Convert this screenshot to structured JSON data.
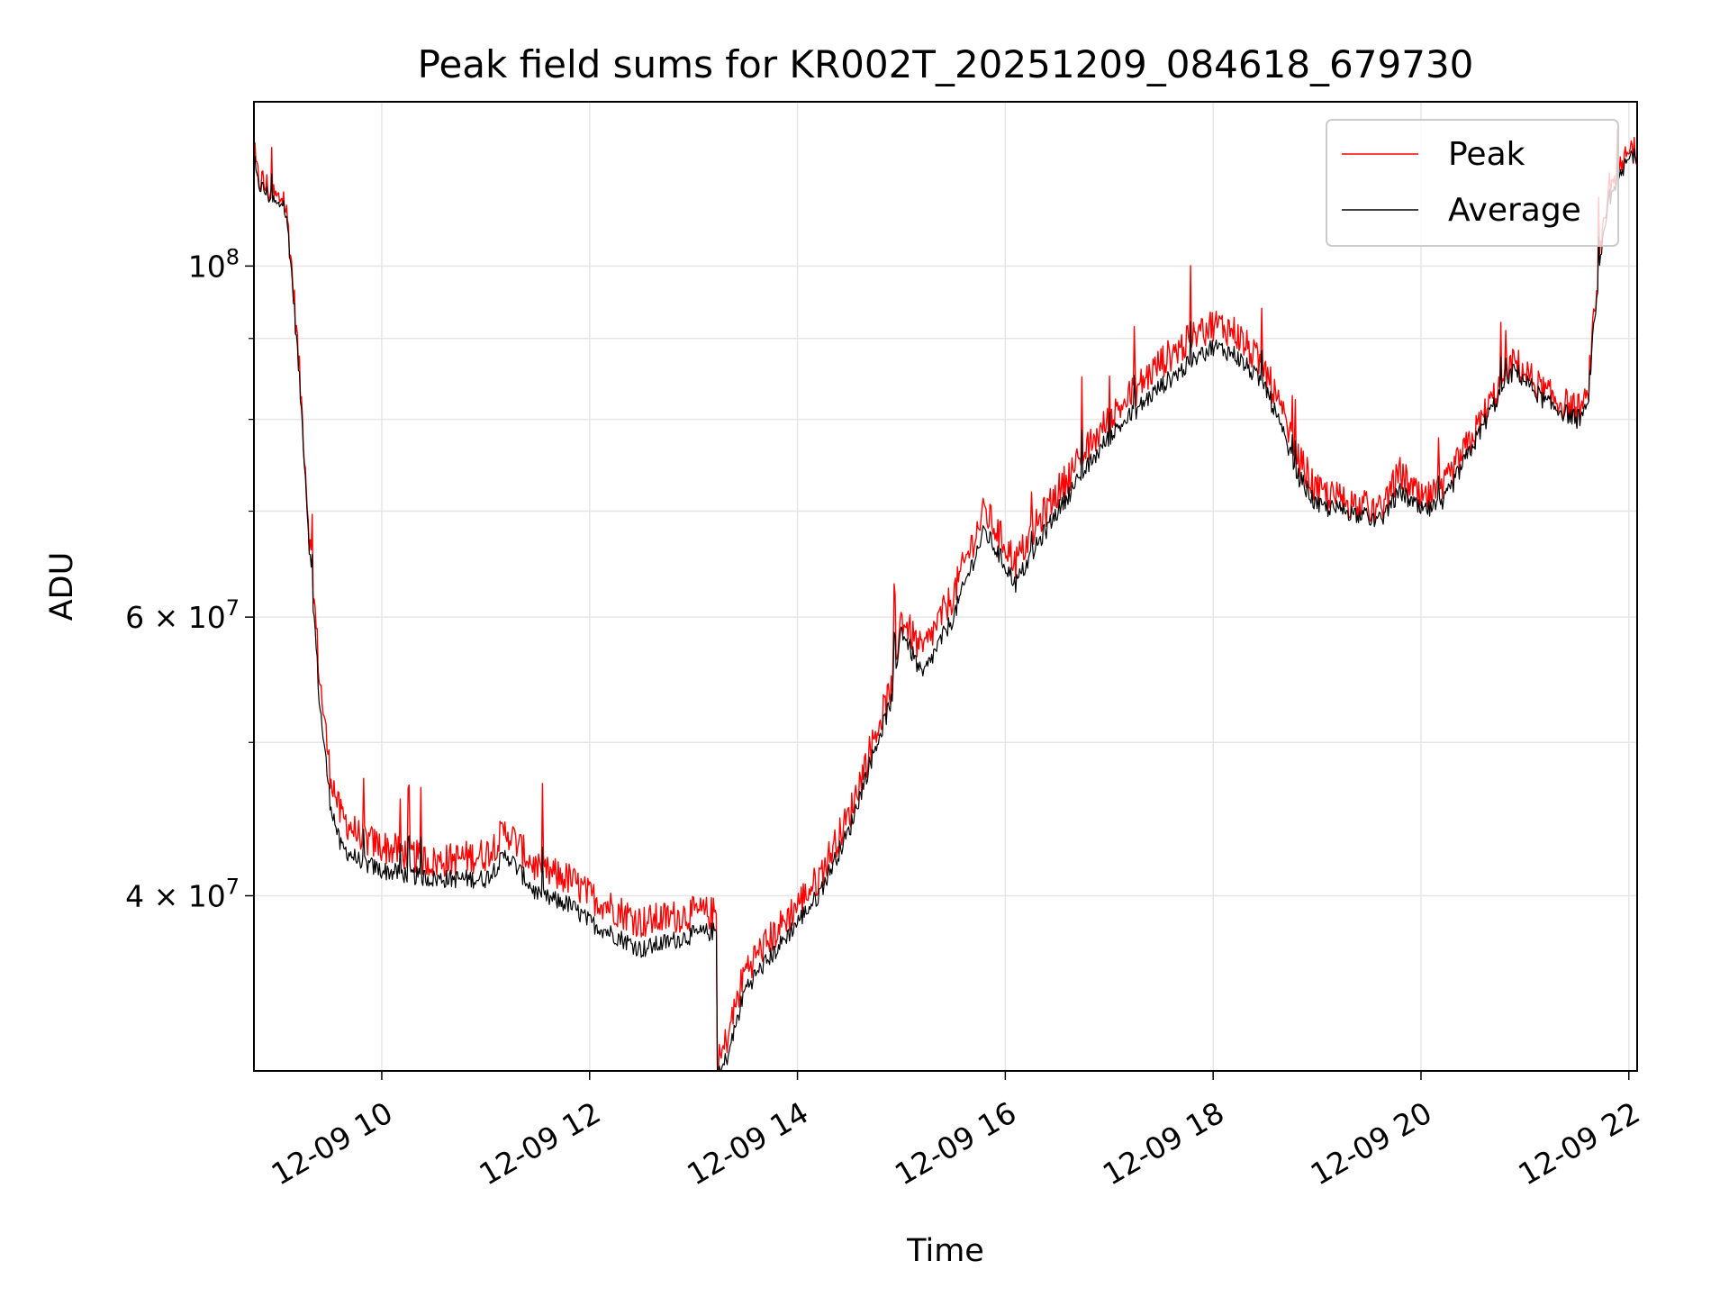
{
  "chart_data": {
    "type": "line",
    "title": "Peak field sums for KR002T_20251209_084618_679730",
    "xlabel": "Time",
    "ylabel": "ADU",
    "yscale": "log",
    "xlim_hours": [
      8.77,
      22.08
    ],
    "ylim": [
      31000000,
      127000000
    ],
    "grid": true,
    "legend_position": "top-right",
    "x_ticks": [
      {
        "value": 10,
        "label": "12-09 10"
      },
      {
        "value": 12,
        "label": "12-09 12"
      },
      {
        "value": 14,
        "label": "12-09 14"
      },
      {
        "value": 16,
        "label": "12-09 16"
      },
      {
        "value": 18,
        "label": "12-09 18"
      },
      {
        "value": 20,
        "label": "12-09 20"
      },
      {
        "value": 22,
        "label": "12-09 22"
      }
    ],
    "y_major_ticks": [
      {
        "value": 100000000,
        "label_base": "10",
        "label_exp": "8",
        "label_coef": ""
      },
      {
        "value": 60000000,
        "label_base": "10",
        "label_exp": "7",
        "label_coef": "6 × "
      },
      {
        "value": 40000000,
        "label_base": "10",
        "label_exp": "7",
        "label_coef": "4 × "
      }
    ],
    "y_minor_ticks": [
      50000000,
      70000000,
      80000000,
      90000000
    ],
    "series": [
      {
        "name": "Peak",
        "color": "#ff0000",
        "x": [
          8.77,
          8.8,
          8.9,
          9.0,
          9.05,
          9.1,
          9.2,
          9.3,
          9.4,
          9.5,
          9.6,
          9.8,
          10.0,
          10.5,
          11.0,
          11.2,
          11.5,
          11.8,
          12.0,
          12.5,
          13.0,
          13.22,
          13.23,
          13.35,
          13.5,
          13.8,
          14.2,
          14.5,
          14.9,
          15.0,
          15.2,
          15.5,
          15.8,
          16.1,
          16.5,
          17.0,
          17.5,
          18.0,
          18.2,
          18.5,
          18.8,
          19.0,
          19.3,
          19.6,
          19.8,
          20.0,
          20.2,
          20.5,
          20.8,
          20.9,
          21.2,
          21.5,
          21.6,
          21.7,
          21.8,
          21.9,
          22.0,
          22.08
        ],
        "y": [
          118000000,
          114000000,
          112000000,
          110000000,
          111000000,
          106000000,
          87000000,
          68000000,
          55000000,
          48000000,
          45000000,
          43500000,
          43000000,
          42000000,
          42500000,
          44000000,
          41500000,
          41000000,
          40000000,
          38500000,
          39000000,
          39000000,
          31000000,
          33000000,
          36000000,
          38000000,
          41000000,
          45000000,
          54000000,
          60000000,
          57000000,
          62000000,
          70000000,
          65000000,
          72000000,
          80000000,
          87000000,
          92000000,
          91000000,
          86000000,
          76000000,
          72000000,
          71000000,
          70000000,
          74000000,
          71000000,
          72000000,
          78000000,
          85000000,
          87000000,
          83000000,
          81000000,
          82000000,
          98000000,
          110000000,
          114000000,
          118000000,
          119000000
        ]
      },
      {
        "name": "Average",
        "color": "#000000",
        "x": [
          8.77,
          8.8,
          8.9,
          9.0,
          9.05,
          9.1,
          9.2,
          9.3,
          9.4,
          9.5,
          9.6,
          9.8,
          10.0,
          10.5,
          11.0,
          11.2,
          11.5,
          11.8,
          12.0,
          12.5,
          13.0,
          13.22,
          13.23,
          13.35,
          13.5,
          13.8,
          14.2,
          14.5,
          14.9,
          15.0,
          15.2,
          15.5,
          15.8,
          16.1,
          16.5,
          17.0,
          17.5,
          18.0,
          18.2,
          18.5,
          18.8,
          19.0,
          19.3,
          19.6,
          19.8,
          20.0,
          20.2,
          20.5,
          20.8,
          20.9,
          21.2,
          21.5,
          21.6,
          21.7,
          21.8,
          21.9,
          22.0,
          22.08
        ],
        "y": [
          117000000,
          113000000,
          111000000,
          109000000,
          110000000,
          105000000,
          86000000,
          67000000,
          53000000,
          46000000,
          43000000,
          42000000,
          41500000,
          41000000,
          41000000,
          42500000,
          40000000,
          39500000,
          38500000,
          37000000,
          37800000,
          38000000,
          30500000,
          32000000,
          35000000,
          37000000,
          40000000,
          44000000,
          53000000,
          59000000,
          55000000,
          60000000,
          68000000,
          63000000,
          70000000,
          78000000,
          84000000,
          89000000,
          88000000,
          84000000,
          74000000,
          70500000,
          70000000,
          69000000,
          72000000,
          70000000,
          70500000,
          77000000,
          84000000,
          86000000,
          82000000,
          80000000,
          81000000,
          97000000,
          109000000,
          113000000,
          117000000,
          118000000
        ]
      }
    ]
  }
}
